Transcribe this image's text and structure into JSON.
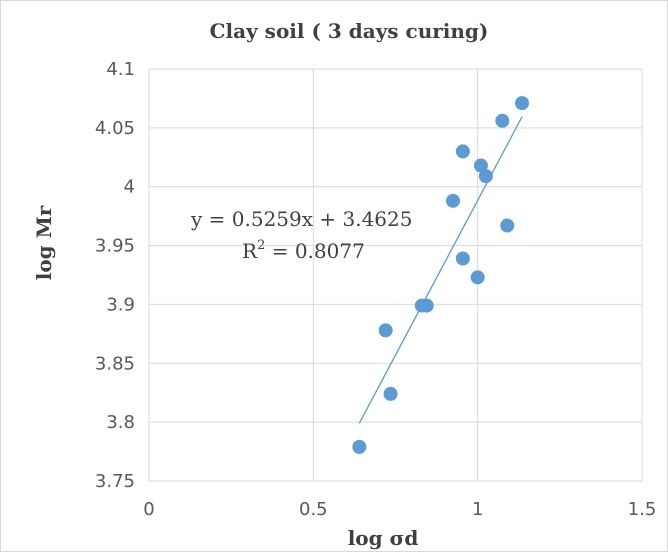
{
  "chart_data": {
    "type": "scatter",
    "title": "Clay soil ( 3 days curing)",
    "xlabel": "log σd",
    "ylabel": "log Mr",
    "xlim": [
      0,
      1.5
    ],
    "ylim": [
      3.75,
      4.1
    ],
    "xticks": [
      "0",
      "0.5",
      "1",
      "1.5"
    ],
    "xtick_values": [
      0,
      0.5,
      1,
      1.5
    ],
    "yticks": [
      "3.75",
      "3.8",
      "3.85",
      "3.9",
      "3.95",
      "4",
      "4.05",
      "4.1"
    ],
    "ytick_values": [
      3.75,
      3.8,
      3.85,
      3.9,
      3.95,
      4.0,
      4.05,
      4.1
    ],
    "grid": true,
    "color": "#5b9bd5",
    "points": [
      {
        "x": 0.64,
        "y": 3.779
      },
      {
        "x": 0.72,
        "y": 3.878
      },
      {
        "x": 0.735,
        "y": 3.824
      },
      {
        "x": 0.83,
        "y": 3.899
      },
      {
        "x": 0.845,
        "y": 3.899
      },
      {
        "x": 0.925,
        "y": 3.988
      },
      {
        "x": 0.955,
        "y": 4.03
      },
      {
        "x": 0.955,
        "y": 3.939
      },
      {
        "x": 1.0,
        "y": 3.923
      },
      {
        "x": 1.01,
        "y": 4.018
      },
      {
        "x": 1.025,
        "y": 4.009
      },
      {
        "x": 1.075,
        "y": 4.056
      },
      {
        "x": 1.09,
        "y": 3.967
      },
      {
        "x": 1.135,
        "y": 4.071
      }
    ],
    "trendline": {
      "slope": 0.5259,
      "intercept": 3.4625,
      "x_range": [
        0.64,
        1.135
      ]
    },
    "equation": "y = 0.5259x + 3.4625",
    "r2_prefix": "R",
    "r2_sup": "2",
    "r2_value": " = 0.8077"
  }
}
